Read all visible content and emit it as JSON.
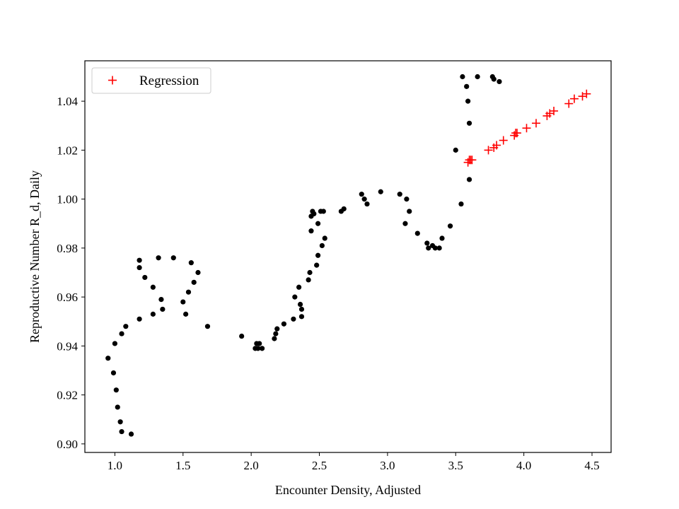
{
  "chart_data": {
    "type": "scatter",
    "xlabel": "Encounter Density, Adjusted",
    "ylabel": "Reproductive Number R_d, Daily",
    "xlim": [
      0.78,
      4.64
    ],
    "ylim": [
      0.8965,
      1.0565
    ],
    "xticks": [
      1.0,
      1.5,
      2.0,
      2.5,
      3.0,
      3.5,
      4.0,
      4.5
    ],
    "xtick_labels": [
      "1.0",
      "1.5",
      "2.0",
      "2.5",
      "3.0",
      "3.5",
      "4.0",
      "4.5"
    ],
    "yticks": [
      0.9,
      0.92,
      0.94,
      0.96,
      0.98,
      1.0,
      1.02,
      1.04
    ],
    "ytick_labels": [
      "0.90",
      "0.92",
      "0.94",
      "0.96",
      "0.98",
      "1.00",
      "1.02",
      "1.04"
    ],
    "grid": false,
    "legend_position": "top-left",
    "series": [
      {
        "marker": "dot",
        "color": "#000000",
        "x": [
          0.95,
          0.99,
          1.0,
          1.01,
          1.02,
          1.04,
          1.05,
          1.12,
          1.05,
          1.08,
          1.18,
          1.18,
          1.22,
          1.28,
          1.34,
          1.35,
          1.32,
          1.43,
          1.28,
          1.18,
          1.5,
          1.52,
          1.54,
          1.56,
          1.58,
          1.61,
          1.68,
          1.93,
          2.03,
          2.04,
          2.05,
          2.06,
          2.08,
          2.17,
          2.18,
          2.19,
          2.24,
          2.31,
          2.32,
          2.35,
          2.36,
          2.37,
          2.37,
          2.42,
          2.43,
          2.44,
          2.44,
          2.45,
          2.46,
          2.48,
          2.49,
          2.49,
          2.51,
          2.52,
          2.53,
          2.54,
          2.66,
          2.68,
          2.81,
          2.83,
          2.85,
          2.95,
          3.09,
          3.13,
          3.14,
          3.16,
          3.22,
          3.29,
          3.3,
          3.33,
          3.35,
          3.38,
          3.4,
          3.46,
          3.5,
          3.54,
          3.55,
          3.58,
          3.59,
          3.6,
          3.6,
          3.66,
          3.77,
          3.78,
          3.82
        ],
        "y": [
          0.935,
          0.929,
          0.941,
          0.922,
          0.915,
          0.909,
          0.905,
          0.904,
          0.945,
          0.948,
          0.951,
          0.975,
          0.968,
          0.964,
          0.959,
          0.955,
          0.976,
          0.976,
          0.953,
          0.972,
          0.958,
          0.953,
          0.962,
          0.974,
          0.966,
          0.97,
          0.948,
          0.944,
          0.939,
          0.941,
          0.939,
          0.941,
          0.939,
          0.943,
          0.945,
          0.947,
          0.949,
          0.951,
          0.96,
          0.964,
          0.957,
          0.955,
          0.952,
          0.967,
          0.97,
          0.987,
          0.993,
          0.995,
          0.994,
          0.973,
          0.977,
          0.99,
          0.995,
          0.981,
          0.995,
          0.984,
          0.995,
          0.996,
          1.002,
          1.0,
          0.998,
          1.003,
          1.002,
          0.99,
          1.0,
          0.995,
          0.986,
          0.982,
          0.98,
          0.981,
          0.98,
          0.98,
          0.984,
          0.989,
          1.02,
          0.998,
          1.05,
          1.046,
          1.04,
          1.008,
          1.031,
          1.05,
          1.05,
          1.049,
          1.048
        ]
      },
      {
        "name": "Regression",
        "marker": "plus",
        "color": "#ff0000",
        "x": [
          3.59,
          3.6,
          3.61,
          3.62,
          3.74,
          3.78,
          3.8,
          3.85,
          3.93,
          3.94,
          3.95,
          4.02,
          4.09,
          4.17,
          4.19,
          4.22,
          4.33,
          4.37,
          4.43,
          4.46
        ],
        "y": [
          1.015,
          1.016,
          1.016,
          1.016,
          1.02,
          1.021,
          1.022,
          1.024,
          1.026,
          1.027,
          1.027,
          1.029,
          1.031,
          1.034,
          1.035,
          1.036,
          1.039,
          1.041,
          1.042,
          1.043
        ]
      }
    ]
  }
}
